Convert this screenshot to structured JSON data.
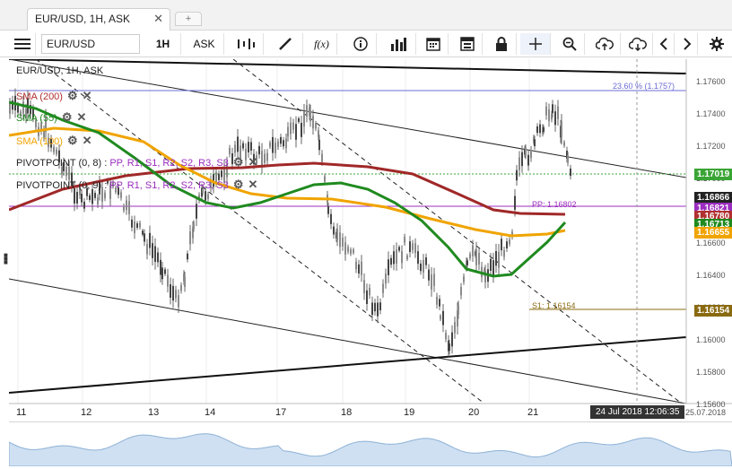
{
  "tab": {
    "title": "EUR/USD, 1H, ASK",
    "close": "✕",
    "add": "+"
  },
  "toolbar": {
    "symbol": "EUR/USD",
    "period": "1H",
    "side": "ASK",
    "fx": "f(x)"
  },
  "chart": {
    "title": "EUR/USD, 1H, ASK",
    "legend": [
      {
        "label": "SMA (200)",
        "color": "#b03030"
      },
      {
        "label": "SMA (55)",
        "color": "#1f8a1f"
      },
      {
        "label": "SMA (100)",
        "color": "#f0a400"
      },
      {
        "label": "PIVOTPOINT (0, 8)",
        "items": "PP, R1, S1, R2, S2, R3, S3"
      },
      {
        "label": "PIVOTPOINT (0, 9)",
        "items": "PP, R1, S1, R2, S2, R3, S3"
      }
    ],
    "fib_label": "23.60 % (1.1757)",
    "pp_label": "PP: 1.16802",
    "s1_label": "S1: 1.16154",
    "price_axis": [
      "1.17600",
      "1.17400",
      "1.17200",
      "1.17000",
      "1.16800",
      "1.16600",
      "1.16400",
      "1.16200",
      "1.16000",
      "1.15800",
      "1.15600"
    ],
    "tags": [
      {
        "value": "1.17019",
        "color": "#3aa535"
      },
      {
        "value": "1.16866",
        "color": "#222222"
      },
      {
        "value": "1.16821",
        "color": "#9b2dbf"
      },
      {
        "value": "1.16780",
        "color": "#b03030"
      },
      {
        "value": "1.16713",
        "color": "#1f8a1f"
      },
      {
        "value": "1.16655",
        "color": "#f0a400"
      },
      {
        "value": "1.16154",
        "color": "#8a6a10"
      }
    ],
    "dates": [
      "11",
      "12",
      "13",
      "14",
      "17",
      "18",
      "19",
      "20",
      "21"
    ],
    "cursor_date": "24 Jul 2018 12:06:35",
    "axis_end_date": "25.07.2018"
  }
}
